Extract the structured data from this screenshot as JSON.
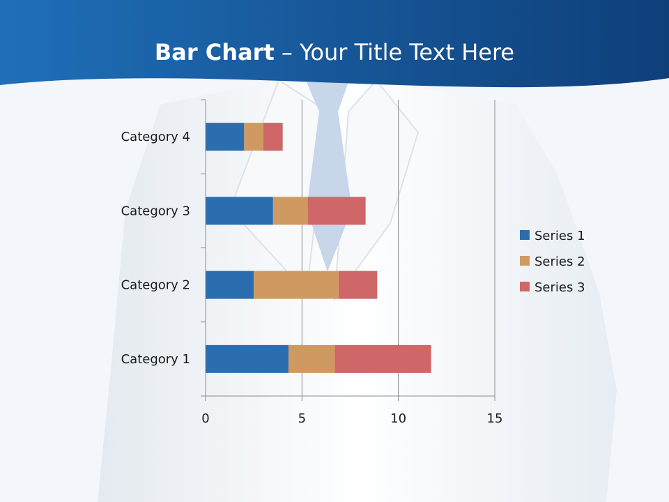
{
  "slide": {
    "title_bold": "Bar Chart",
    "title_rest": " – Your Title Text Here"
  },
  "colors": {
    "header_dark": "#0f3f79",
    "header_light": "#1f6fb8",
    "series_1": "#2b6eb0",
    "series_2": "#cf9a62",
    "series_3": "#cf6667",
    "grid": "#8a8a8a"
  },
  "chart_data": {
    "type": "bar",
    "orientation": "horizontal",
    "stacked": true,
    "categories": [
      "Category 1",
      "Category 2",
      "Category 3",
      "Category 4"
    ],
    "series": [
      {
        "name": "Series 1",
        "values": [
          4.3,
          2.5,
          3.5,
          2.0
        ]
      },
      {
        "name": "Series 2",
        "values": [
          2.4,
          4.4,
          1.8,
          1.0
        ]
      },
      {
        "name": "Series 3",
        "values": [
          5.0,
          2.0,
          3.0,
          1.0
        ]
      }
    ],
    "x_ticks": [
      "0",
      "5",
      "10",
      "15"
    ],
    "xlim": [
      0,
      15
    ],
    "grid": true,
    "legend": "right"
  }
}
